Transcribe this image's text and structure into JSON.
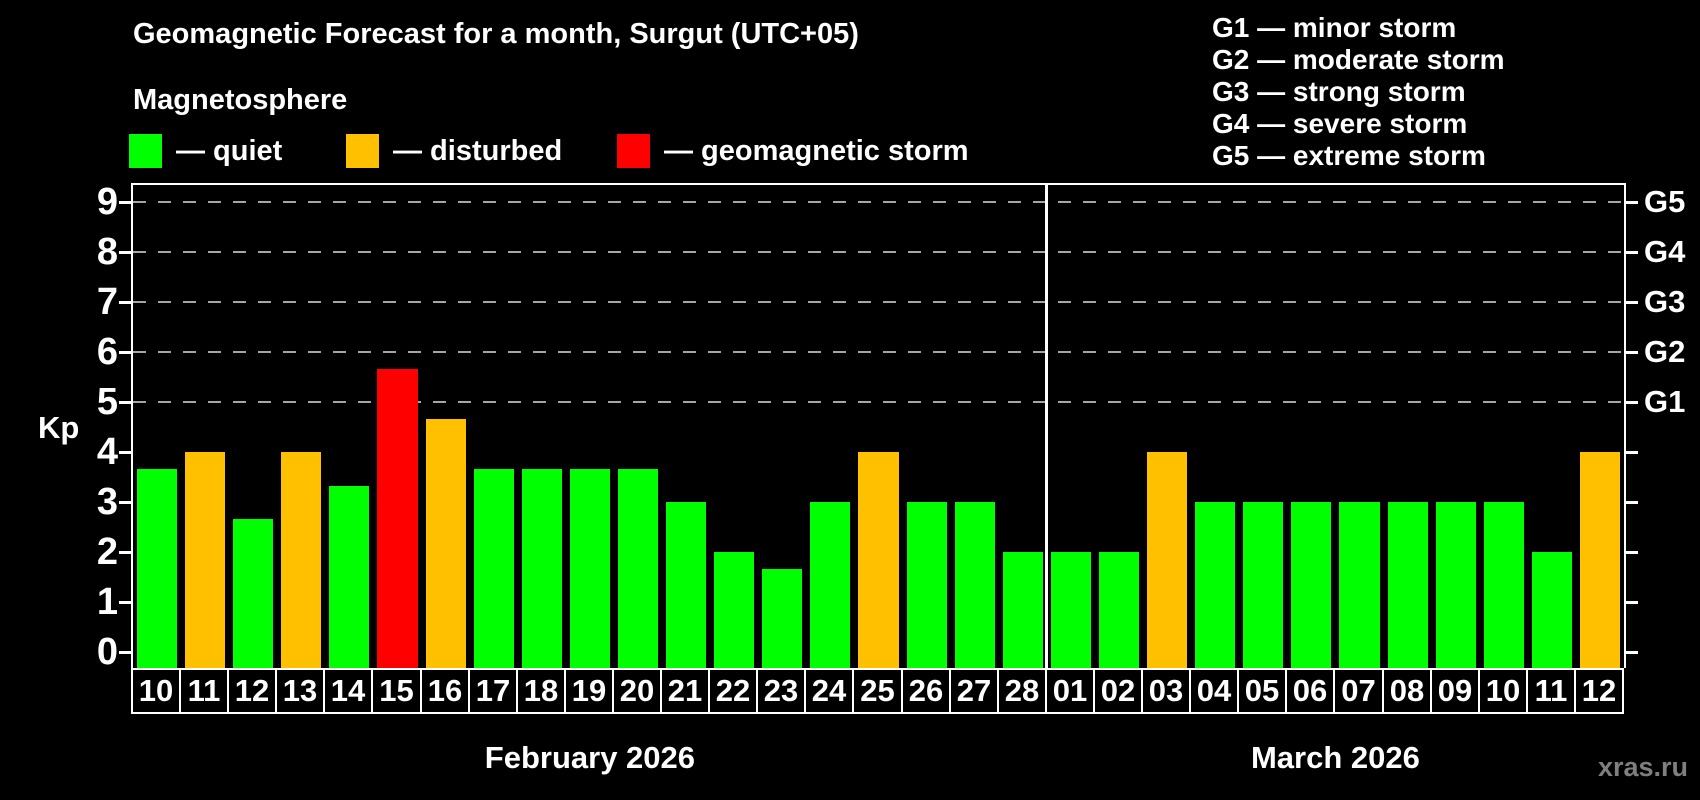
{
  "header": {
    "title": "Geomagnetic Forecast for a month, Surgut (UTC+05)",
    "subtitle": "Magnetosphere"
  },
  "legend": {
    "items": [
      {
        "name": "quiet",
        "swatch_color": "#00ff00",
        "label": "— quiet"
      },
      {
        "name": "disturbed",
        "swatch_color": "#ffc000",
        "label": "— disturbed"
      },
      {
        "name": "storm",
        "swatch_color": "#ff0000",
        "label": "— geomagnetic storm"
      }
    ]
  },
  "g_scale_legend": {
    "lines": [
      "G1 — minor storm",
      "G2 — moderate storm",
      "G3 — strong storm",
      "G4 — severe storm",
      "G5 — extreme storm"
    ]
  },
  "watermark": "xras.ru",
  "chart_data": {
    "type": "bar",
    "title": "Geomagnetic Forecast for a month, Surgut (UTC+05)",
    "ylabel": "Kp",
    "ylim": [
      0,
      9
    ],
    "grid": "dashed horizontal at Kp 5-9 only",
    "legend_position": "top-left",
    "left_ticks": [
      0,
      1,
      2,
      3,
      4,
      5,
      6,
      7,
      8,
      9
    ],
    "right_axis_labels": [
      {
        "label": "G1",
        "level": 5
      },
      {
        "label": "G2",
        "level": 6
      },
      {
        "label": "G3",
        "level": 7
      },
      {
        "label": "G4",
        "level": 8
      },
      {
        "label": "G5",
        "level": 9
      }
    ],
    "gridline_levels": [
      5,
      6,
      7,
      8,
      9
    ],
    "months": [
      {
        "label": "February 2026",
        "start_index": 0,
        "days": 19
      },
      {
        "label": "March 2026",
        "start_index": 19,
        "days": 12
      }
    ],
    "categories": [
      "10",
      "11",
      "12",
      "13",
      "14",
      "15",
      "16",
      "17",
      "18",
      "19",
      "20",
      "21",
      "22",
      "23",
      "24",
      "25",
      "26",
      "27",
      "28",
      "01",
      "02",
      "03",
      "04",
      "05",
      "06",
      "07",
      "08",
      "09",
      "10",
      "11",
      "12"
    ],
    "series": [
      {
        "name": "Kp forecast",
        "values": [
          3.67,
          4,
          2.67,
          4,
          3.33,
          5.67,
          4.67,
          3.67,
          3.67,
          3.67,
          3.67,
          3,
          2,
          1.67,
          3,
          4,
          3,
          3,
          2,
          2,
          2,
          4,
          3,
          3,
          3,
          3,
          3,
          3,
          3,
          2,
          4
        ]
      }
    ],
    "statuses": [
      "quiet",
      "disturbed",
      "quiet",
      "disturbed",
      "quiet",
      "storm",
      "disturbed",
      "quiet",
      "quiet",
      "quiet",
      "quiet",
      "quiet",
      "quiet",
      "quiet",
      "quiet",
      "disturbed",
      "quiet",
      "quiet",
      "quiet",
      "quiet",
      "quiet",
      "disturbed",
      "quiet",
      "quiet",
      "quiet",
      "quiet",
      "quiet",
      "quiet",
      "quiet",
      "quiet",
      "disturbed"
    ],
    "status_colors": {
      "quiet": "#00ff00",
      "disturbed": "#ffc000",
      "storm": "#ff0000"
    }
  }
}
